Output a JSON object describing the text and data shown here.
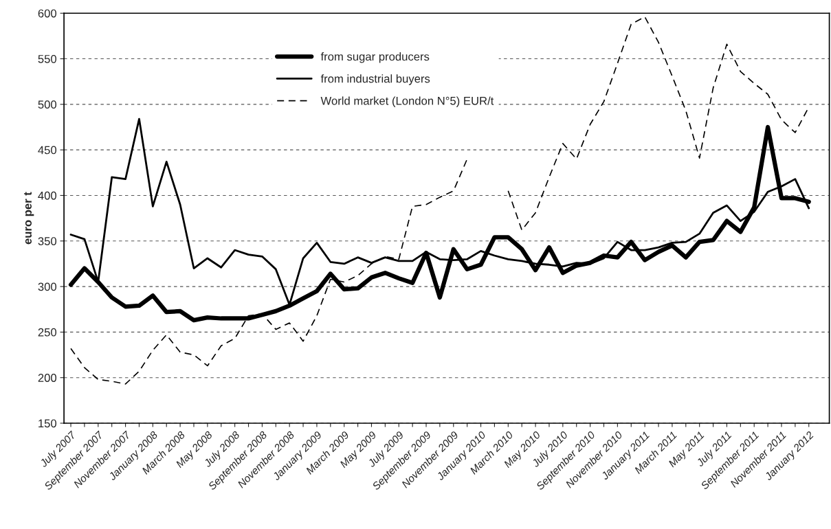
{
  "chart_data": {
    "type": "line",
    "ylabel": "euro per t",
    "categories": [
      "July 2007",
      null,
      "September 2007",
      null,
      "November 2007",
      null,
      "January 2008",
      null,
      "March 2008",
      null,
      "May 2008",
      null,
      "July 2008",
      null,
      "September 2008",
      null,
      "November 2008",
      null,
      "January 2009",
      null,
      "March 2009",
      null,
      "May 2009",
      null,
      "July 2009",
      null,
      "September 2009",
      null,
      "November 2009",
      null,
      "January 2010",
      null,
      "March 2010",
      null,
      "May 2010",
      null,
      "July 2010",
      null,
      "September 2010",
      null,
      "November 2010",
      null,
      "January 2011",
      null,
      "March 2011",
      null,
      "May 2011",
      null,
      "July 2011",
      null,
      "September 2011",
      null,
      "November 2011",
      null,
      "January 2012"
    ],
    "series": [
      {
        "name": "from sugar producers",
        "color": "#000000",
        "line_style": "solid",
        "values": [
          302,
          320,
          305,
          288,
          278,
          279,
          290,
          272,
          273,
          263,
          266,
          265,
          265,
          265,
          269,
          273,
          279,
          287,
          295,
          314,
          297,
          298,
          310,
          315,
          309,
          304,
          337,
          288,
          341,
          319,
          324,
          354,
          354,
          341,
          318,
          343,
          315,
          323,
          326,
          334,
          332,
          349,
          329,
          338,
          345,
          332,
          349,
          351,
          372,
          360,
          387,
          475,
          397,
          397,
          393
        ]
      },
      {
        "name": "from industrial buyers",
        "color": "#000000",
        "line_style": "solid",
        "values": [
          357,
          352,
          305,
          420,
          418,
          484,
          388,
          437,
          390,
          320,
          331,
          321,
          340,
          335,
          333,
          319,
          280,
          331,
          348,
          327,
          325,
          332,
          326,
          332,
          328,
          328,
          338,
          330,
          329,
          330,
          339,
          334,
          330,
          328,
          325,
          324,
          322,
          326,
          325,
          331,
          349,
          340,
          340,
          343,
          348,
          349,
          358,
          381,
          389,
          372,
          382,
          404,
          410,
          418,
          386
        ]
      },
      {
        "name": "World market (London N°5) EUR/t",
        "color": "#000000",
        "line_style": "dashed",
        "values": [
          232,
          211,
          198,
          196,
          193,
          207,
          230,
          247,
          228,
          225,
          213,
          235,
          243,
          268,
          270,
          253,
          260,
          240,
          268,
          308,
          305,
          312,
          325,
          333,
          330,
          388,
          390,
          398,
          405,
          440,
          null,
          null,
          405,
          362,
          381,
          420,
          457,
          440,
          478,
          503,
          545,
          588,
          596,
          568,
          531,
          493,
          441,
          518,
          566,
          536,
          523,
          511,
          483,
          469,
          497
        ]
      }
    ],
    "ylim": [
      150,
      600
    ],
    "yticks": [
      150,
      200,
      250,
      300,
      350,
      400,
      450,
      500,
      550,
      600
    ],
    "grid": "y",
    "legend": "top"
  }
}
